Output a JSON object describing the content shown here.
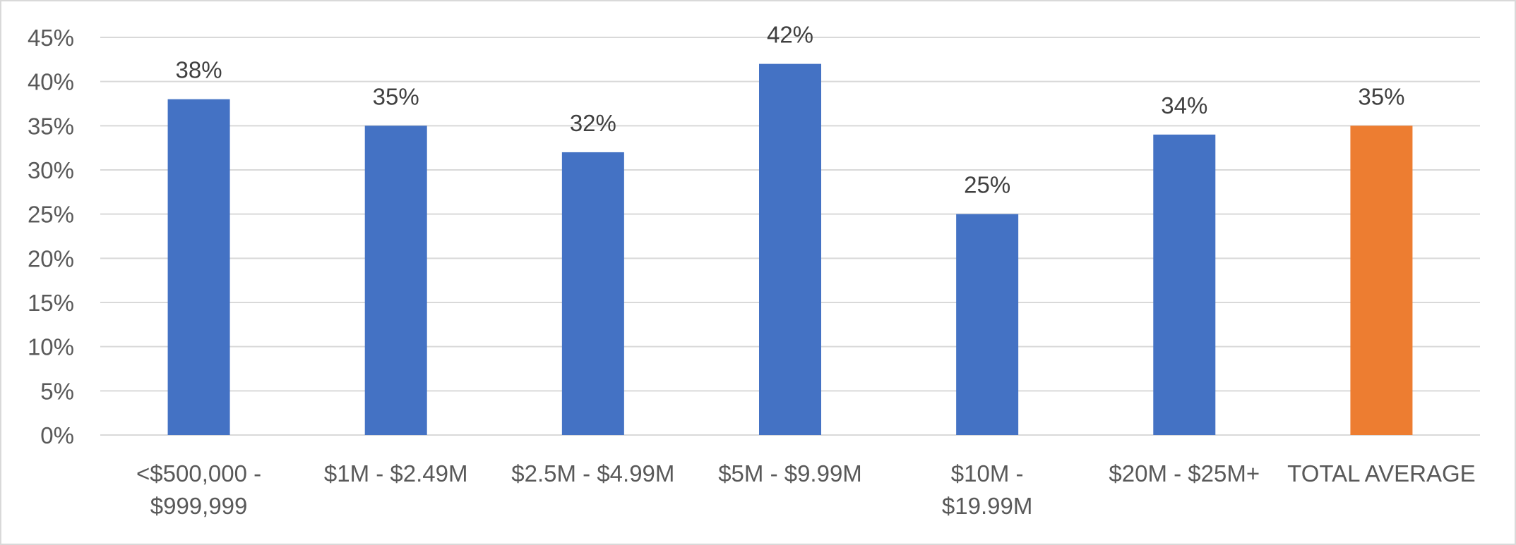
{
  "chart_data": {
    "type": "bar",
    "title": "",
    "xlabel": "",
    "ylabel": "",
    "ylim": [
      0,
      45
    ],
    "y_ticks": [
      "0%",
      "5%",
      "10%",
      "15%",
      "20%",
      "25%",
      "30%",
      "35%",
      "40%",
      "45%"
    ],
    "grid": true,
    "legend": "none",
    "categories": [
      [
        "<$500,000 -",
        "$999,999"
      ],
      [
        "$1M - $2.49M"
      ],
      [
        "$2.5M - $4.99M"
      ],
      [
        "$5M - $9.99M"
      ],
      [
        "$10M -",
        "$19.99M"
      ],
      [
        "$20M - $25M+"
      ],
      [
        "TOTAL AVERAGE"
      ]
    ],
    "values": [
      38,
      35,
      32,
      42,
      25,
      34,
      35
    ],
    "data_labels": [
      "38%",
      "35%",
      "32%",
      "42%",
      "25%",
      "34%",
      "35%"
    ],
    "bar_colors": [
      "#4472c4",
      "#4472c4",
      "#4472c4",
      "#4472c4",
      "#4472c4",
      "#4472c4",
      "#ed7d31"
    ],
    "gridline_color": "#d9d9d9"
  }
}
